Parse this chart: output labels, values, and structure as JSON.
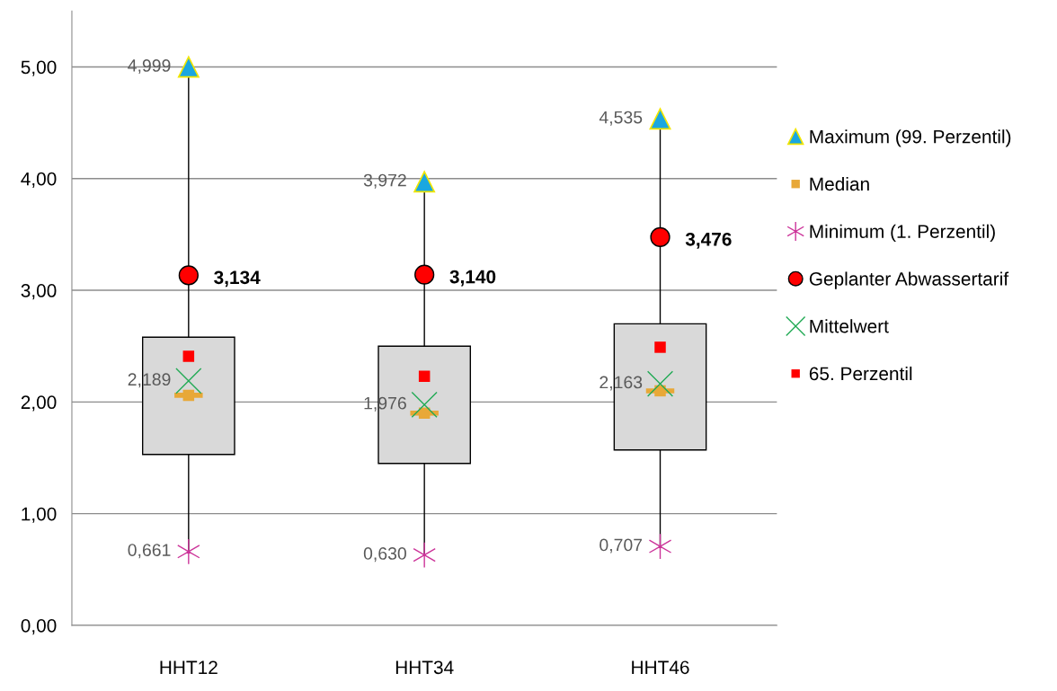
{
  "chart_data": {
    "type": "box",
    "categories": [
      "HHT12",
      "HHT34",
      "HHT46"
    ],
    "ylim": [
      0,
      5.5
    ],
    "yticks": [
      {
        "value": 0,
        "label": "0,00"
      },
      {
        "value": 1,
        "label": "1,00"
      },
      {
        "value": 2,
        "label": "2,00"
      },
      {
        "value": 3,
        "label": "3,00"
      },
      {
        "value": 4,
        "label": "4,00"
      },
      {
        "value": 5,
        "label": "5,00"
      }
    ],
    "grid": "y",
    "legend": "right",
    "boxes": [
      {
        "low": 0.661,
        "q1": 1.53,
        "median": 2.06,
        "q3": 2.58,
        "high": 4.999
      },
      {
        "low": 0.63,
        "q1": 1.45,
        "median": 1.9,
        "q3": 2.5,
        "high": 3.972
      },
      {
        "low": 0.707,
        "q1": 1.57,
        "median": 2.1,
        "q3": 2.7,
        "high": 4.535
      }
    ],
    "series": [
      {
        "name": "Maximum (99. Perzentil)",
        "type": "scatter",
        "marker": "triangle",
        "color": "#1aa7e0",
        "values": [
          4.999,
          3.972,
          4.535
        ],
        "value_labels": [
          "4,999",
          "3,972",
          "4,535"
        ]
      },
      {
        "name": "Median",
        "type": "scatter",
        "marker": "square",
        "color": "#e8a838",
        "values": [
          2.06,
          1.9,
          2.1
        ]
      },
      {
        "name": "Minimum (1. Perzentil)",
        "type": "scatter",
        "color": "#cc3399",
        "values": [
          0.661,
          0.63,
          0.707
        ],
        "value_labels": [
          "0,661",
          "0,630",
          "0,707"
        ]
      },
      {
        "name": "Geplanter Abwassertarif",
        "type": "scatter",
        "marker": "circle",
        "color": "#ff0000",
        "values": [
          3.134,
          3.14,
          3.476
        ],
        "value_labels": [
          "3,134",
          "3,140",
          "3,476"
        ]
      },
      {
        "name": "Mittelwert",
        "type": "scatter",
        "marker": "cross",
        "color": "#22aa55",
        "values": [
          2.189,
          1.976,
          2.163
        ],
        "value_labels": [
          "2,189",
          "1,976",
          "2,163"
        ]
      },
      {
        "name": "65. Perzentil",
        "type": "scatter",
        "marker": "square",
        "color": "#ff0000",
        "values": [
          2.41,
          2.23,
          2.49
        ]
      }
    ]
  }
}
